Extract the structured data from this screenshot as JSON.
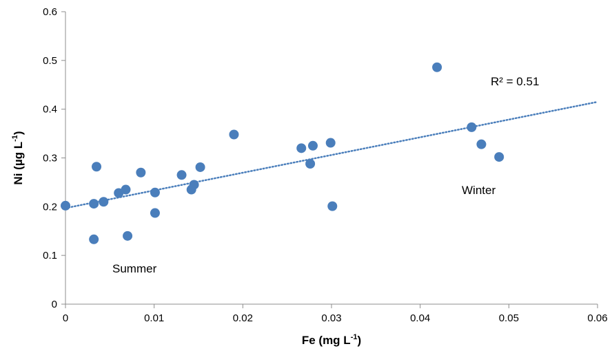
{
  "chart_data": {
    "type": "scatter",
    "xlabel": "Fe (mg L",
    "xlabel_sup": "-1",
    "xlabel_end": ")",
    "ylabel": "Ni (µg L",
    "ylabel_sup": "-1",
    "ylabel_end": ")",
    "xlim": [
      0,
      0.06
    ],
    "ylim": [
      0,
      0.6
    ],
    "x_ticks": [
      "0",
      "0.01",
      "0.02",
      "0.03",
      "0.04",
      "0.05",
      "0.06"
    ],
    "y_ticks": [
      "0",
      "0.1",
      "0.2",
      "0.3",
      "0.4",
      "0.5",
      "0.6"
    ],
    "grid": false,
    "marker_color": "#4a7ebb",
    "trendline": {
      "type": "linear",
      "style": "dotted",
      "color": "#4a7ebb",
      "x": [
        0,
        0.06
      ],
      "y": [
        0.197,
        0.415
      ]
    },
    "annotations": {
      "r2": "R² = 0.51",
      "summer": "Summer",
      "winter": "Winter"
    },
    "series": [
      {
        "points": [
          [
            0.0,
            0.202
          ],
          [
            0.0032,
            0.133
          ],
          [
            0.0032,
            0.206
          ],
          [
            0.0035,
            0.282
          ],
          [
            0.0043,
            0.21
          ],
          [
            0.006,
            0.228
          ],
          [
            0.0068,
            0.235
          ],
          [
            0.007,
            0.14
          ],
          [
            0.0085,
            0.27
          ],
          [
            0.0101,
            0.187
          ],
          [
            0.0101,
            0.229
          ],
          [
            0.0131,
            0.265
          ],
          [
            0.0142,
            0.235
          ],
          [
            0.0145,
            0.245
          ],
          [
            0.0152,
            0.281
          ],
          [
            0.019,
            0.348
          ],
          [
            0.0266,
            0.32
          ],
          [
            0.0276,
            0.288
          ],
          [
            0.0279,
            0.325
          ],
          [
            0.0299,
            0.331
          ],
          [
            0.0301,
            0.201
          ],
          [
            0.0419,
            0.486
          ],
          [
            0.0458,
            0.363
          ],
          [
            0.0469,
            0.328
          ],
          [
            0.0489,
            0.302
          ]
        ]
      }
    ]
  }
}
